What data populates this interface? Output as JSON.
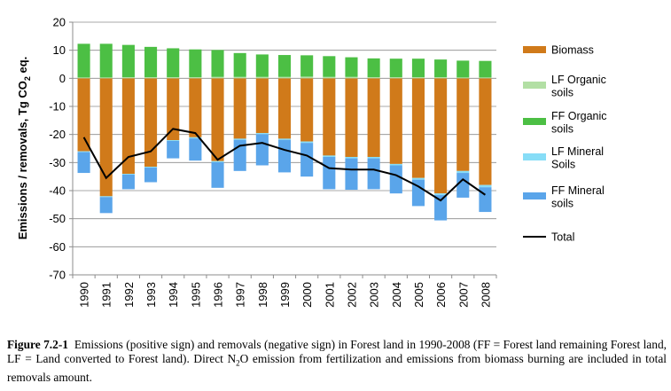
{
  "chart_data": {
    "type": "bar",
    "stacked": true,
    "ylabel": "Emissions / removals, Tg CO2 eq.",
    "ylabel_parts": [
      "Emissions / removals, Tg CO",
      "2",
      " eq."
    ],
    "ylim": [
      -70,
      20
    ],
    "yticks": [
      20,
      10,
      0,
      -10,
      -20,
      -30,
      -40,
      -50,
      -60,
      -70
    ],
    "grid": true,
    "legend_position": "right",
    "categories": [
      "1990",
      "1991",
      "1992",
      "1993",
      "1994",
      "1995",
      "1996",
      "1997",
      "1998",
      "1999",
      "2000",
      "2001",
      "2002",
      "2003",
      "2004",
      "2005",
      "2006",
      "2007",
      "2008"
    ],
    "series": [
      {
        "name": "Biomass",
        "legend_lines": [
          "Biomass"
        ],
        "color": "#d07a1a",
        "values": [
          -26,
          -42,
          -34,
          -31.5,
          -22,
          -21,
          -29.5,
          -21.5,
          -19.5,
          -21.5,
          -22.5,
          -27.5,
          -28,
          -28,
          -30.5,
          -35.5,
          -41,
          -33,
          -38
        ]
      },
      {
        "name": "LF Organic soils",
        "legend_lines": [
          "LF Organic",
          "soils"
        ],
        "color": "#b2dfa4",
        "values": [
          0.3,
          0.3,
          0.4,
          0.4,
          0.4,
          0.4,
          0.5,
          0.5,
          0.5,
          0.5,
          0.6,
          0.5,
          0.5,
          0.4,
          0.4,
          0.4,
          0.4,
          0.3,
          0.3
        ]
      },
      {
        "name": "FF Organic soils",
        "legend_lines": [
          "FF Organic",
          "soils"
        ],
        "color": "#4cbf44",
        "values": [
          12,
          12,
          11.5,
          10.8,
          10.3,
          9.9,
          9.6,
          8.5,
          8.0,
          7.8,
          7.6,
          7.4,
          7.0,
          6.7,
          6.6,
          6.6,
          6.3,
          6.0,
          5.9
        ]
      },
      {
        "name": "LF Mineral Soils",
        "legend_lines": [
          "LF Mineral",
          "Soils"
        ],
        "color": "#87ddf7",
        "values": [
          -0.3,
          -0.3,
          -0.3,
          -0.3,
          -0.3,
          -0.4,
          -0.4,
          -0.4,
          -0.4,
          -0.4,
          -0.5,
          -0.5,
          -0.5,
          -0.5,
          -0.5,
          -0.6,
          -0.6,
          -0.7,
          -0.8
        ]
      },
      {
        "name": "FF Mineral soils",
        "legend_lines": [
          "FF Mineral",
          "soils"
        ],
        "color": "#5aa5ea",
        "values": [
          -7.4,
          -5.7,
          -5.2,
          -5.2,
          -6.2,
          -7.9,
          -9.1,
          -11.1,
          -11.1,
          -11.6,
          -12.0,
          -11.5,
          -11.2,
          -11.0,
          -10.0,
          -9.4,
          -9.0,
          -8.8,
          -8.8
        ]
      }
    ],
    "line": {
      "name": "Total",
      "legend_lines": [
        "Total"
      ],
      "color": "#000000",
      "values": [
        -21,
        -35.5,
        -28,
        -26,
        -18,
        -19.5,
        -29,
        -24,
        -23,
        -25.5,
        -27.5,
        -32,
        -32.5,
        -32.5,
        -34.5,
        -38.5,
        -43.5,
        -36,
        -41.5
      ]
    }
  },
  "caption": {
    "label": "Figure 7.2-1",
    "text_before_sub": "Emissions (positive sign) and removals (negative sign) in Forest land in 1990-2008 (FF = Forest land remaining Forest land, LF = Land converted to Forest land). Direct N",
    "sub": "2",
    "text_after_sub": "O emission from fertilization and emissions from biomass burning are included in total removals amount."
  }
}
